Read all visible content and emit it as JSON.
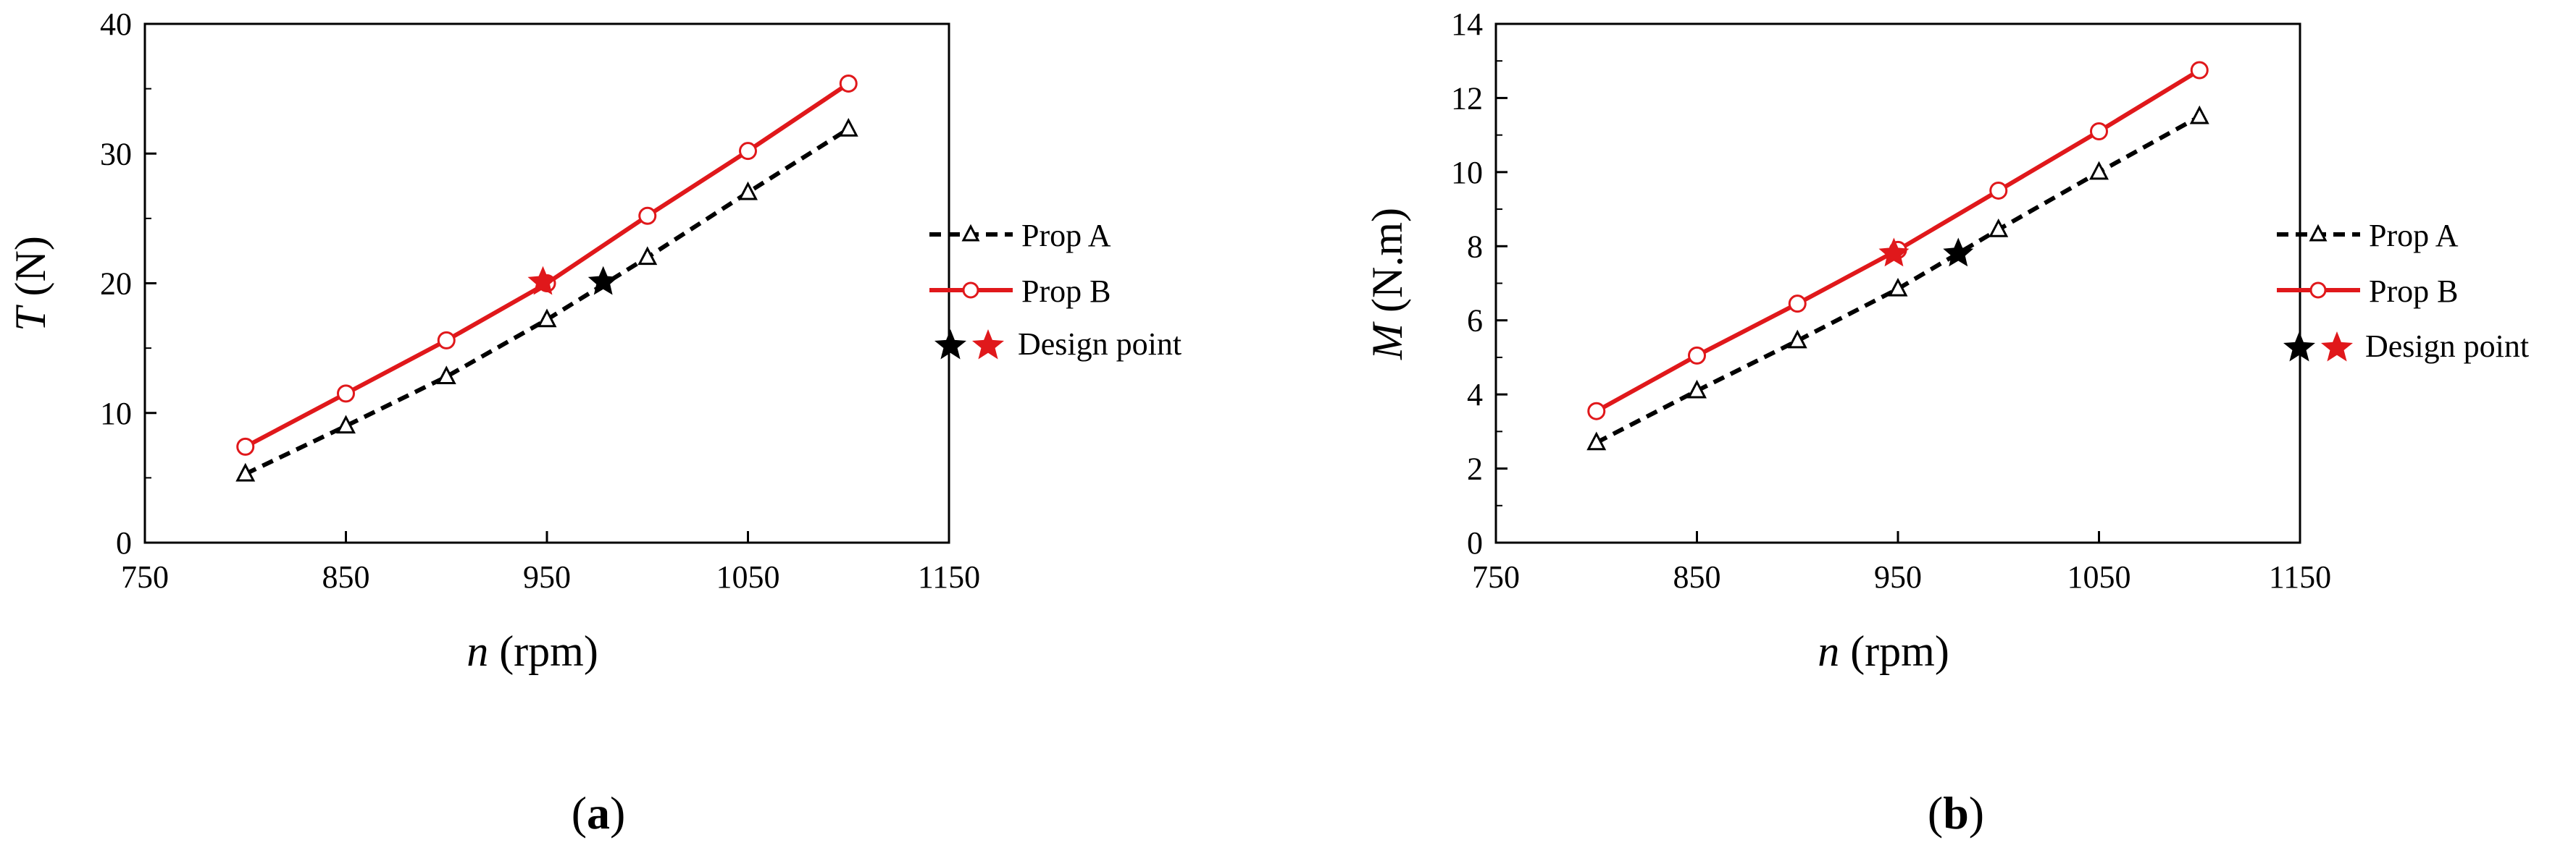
{
  "legend": {
    "prop_a": "Prop A",
    "prop_b": "Prop B",
    "design_point": "Design point"
  },
  "colors": {
    "prop_a": "#000000",
    "prop_b": "#e0181b"
  },
  "chart_data": [
    {
      "type": "line",
      "panel_label": "a",
      "x_label": {
        "var": "n",
        "unit": " (rpm)"
      },
      "y_label": {
        "var": "T",
        "unit": " (N)"
      },
      "x_range": [
        750,
        1150
      ],
      "x_ticks": [
        750,
        850,
        950,
        1050,
        1150
      ],
      "y_range": [
        0,
        40
      ],
      "y_ticks": [
        0,
        10,
        20,
        30,
        40
      ],
      "y_minor_step": 5,
      "series": [
        {
          "name": "Prop A",
          "marker": "triangle",
          "style": "dashed",
          "x": [
            800,
            850,
            900,
            950,
            1000,
            1050,
            1100
          ],
          "y": [
            5.3,
            9.0,
            12.8,
            17.2,
            22.0,
            27.0,
            31.9
          ]
        },
        {
          "name": "Prop B",
          "marker": "circle",
          "style": "solid",
          "x": [
            800,
            850,
            900,
            950,
            1000,
            1050,
            1100
          ],
          "y": [
            7.4,
            11.5,
            15.6,
            20.0,
            25.2,
            30.2,
            35.4
          ]
        }
      ],
      "design_points": [
        {
          "series": "Prop A",
          "x": 978,
          "y": 20.1
        },
        {
          "series": "Prop B",
          "x": 948,
          "y": 20.1
        }
      ]
    },
    {
      "type": "line",
      "panel_label": "b",
      "x_label": {
        "var": "n",
        "unit": " (rpm)"
      },
      "y_label": {
        "var": "M",
        "unit": " (N.m)"
      },
      "x_range": [
        750,
        1150
      ],
      "x_ticks": [
        750,
        850,
        950,
        1050,
        1150
      ],
      "y_range": [
        0,
        14
      ],
      "y_ticks": [
        0,
        2,
        4,
        6,
        8,
        10,
        12,
        14
      ],
      "y_minor_step": 1,
      "series": [
        {
          "name": "Prop A",
          "marker": "triangle",
          "style": "dashed",
          "x": [
            800,
            850,
            900,
            950,
            1000,
            1050,
            1100
          ],
          "y": [
            2.7,
            4.1,
            5.45,
            6.85,
            8.45,
            10.0,
            11.5
          ]
        },
        {
          "name": "Prop B",
          "marker": "circle",
          "style": "solid",
          "x": [
            800,
            850,
            900,
            950,
            1000,
            1050,
            1100
          ],
          "y": [
            3.55,
            5.05,
            6.45,
            7.9,
            9.5,
            11.1,
            12.75
          ]
        }
      ],
      "design_points": [
        {
          "series": "Prop A",
          "x": 980,
          "y": 7.8
        },
        {
          "series": "Prop B",
          "x": 948,
          "y": 7.8
        }
      ]
    }
  ]
}
